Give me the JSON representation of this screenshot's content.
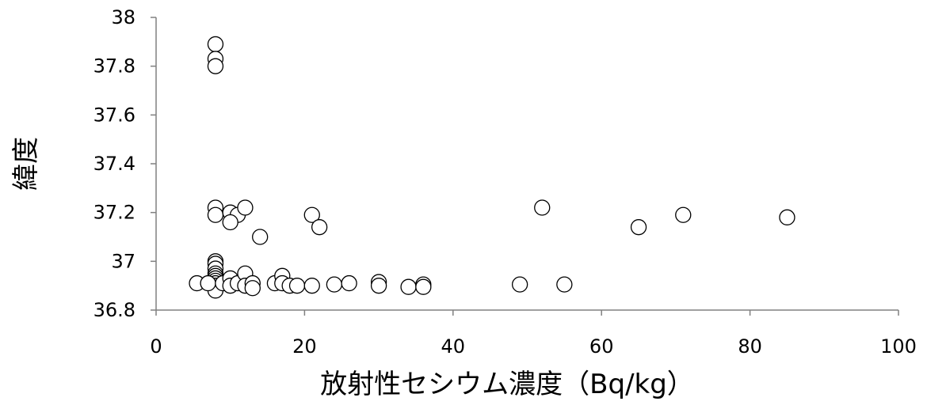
{
  "chart_data": {
    "type": "scatter",
    "title": "",
    "xlabel": "放射性セシウム濃度（Bq/kg）",
    "ylabel": "緯度",
    "xlim": [
      0,
      100
    ],
    "ylim": [
      36.8,
      38
    ],
    "x_ticks": [
      "0",
      "20",
      "40",
      "60",
      "80",
      "100"
    ],
    "y_ticks": [
      "36.8",
      "37",
      "37.2",
      "37.4",
      "37.6",
      "37.8",
      "38"
    ],
    "grid": false,
    "legend": "none",
    "marker_color": "#000000",
    "series": [
      {
        "points": [
          {
            "x": 8,
            "y": 37.89
          },
          {
            "x": 8,
            "y": 37.83
          },
          {
            "x": 8,
            "y": 37.8
          },
          {
            "x": 8,
            "y": 37.22
          },
          {
            "x": 8,
            "y": 37.19
          },
          {
            "x": 10,
            "y": 37.2
          },
          {
            "x": 11,
            "y": 37.19
          },
          {
            "x": 12,
            "y": 37.22
          },
          {
            "x": 10,
            "y": 37.16
          },
          {
            "x": 14,
            "y": 37.1
          },
          {
            "x": 21,
            "y": 37.19
          },
          {
            "x": 22,
            "y": 37.14
          },
          {
            "x": 52,
            "y": 37.22
          },
          {
            "x": 65,
            "y": 37.14
          },
          {
            "x": 71,
            "y": 37.19
          },
          {
            "x": 85,
            "y": 37.18
          },
          {
            "x": 8,
            "y": 37.0
          },
          {
            "x": 8,
            "y": 36.99
          },
          {
            "x": 8,
            "y": 36.97
          },
          {
            "x": 8,
            "y": 36.95
          },
          {
            "x": 8,
            "y": 36.94
          },
          {
            "x": 8,
            "y": 36.93
          },
          {
            "x": 8,
            "y": 36.92
          },
          {
            "x": 8,
            "y": 36.91
          },
          {
            "x": 8,
            "y": 36.9
          },
          {
            "x": 8,
            "y": 36.89
          },
          {
            "x": 8,
            "y": 36.88
          },
          {
            "x": 5.5,
            "y": 36.91
          },
          {
            "x": 7,
            "y": 36.91
          },
          {
            "x": 9,
            "y": 36.91
          },
          {
            "x": 10,
            "y": 36.93
          },
          {
            "x": 10,
            "y": 36.9
          },
          {
            "x": 11,
            "y": 36.91
          },
          {
            "x": 12,
            "y": 36.95
          },
          {
            "x": 12,
            "y": 36.9
          },
          {
            "x": 13,
            "y": 36.91
          },
          {
            "x": 13,
            "y": 36.89
          },
          {
            "x": 16,
            "y": 36.91
          },
          {
            "x": 17,
            "y": 36.94
          },
          {
            "x": 17,
            "y": 36.91
          },
          {
            "x": 18,
            "y": 36.9
          },
          {
            "x": 19,
            "y": 36.9
          },
          {
            "x": 21,
            "y": 36.9
          },
          {
            "x": 24,
            "y": 36.905
          },
          {
            "x": 26,
            "y": 36.91
          },
          {
            "x": 30,
            "y": 36.915
          },
          {
            "x": 30,
            "y": 36.9
          },
          {
            "x": 34,
            "y": 36.895
          },
          {
            "x": 36,
            "y": 36.905
          },
          {
            "x": 36,
            "y": 36.895
          },
          {
            "x": 49,
            "y": 36.905
          },
          {
            "x": 55,
            "y": 36.905
          }
        ]
      }
    ]
  }
}
